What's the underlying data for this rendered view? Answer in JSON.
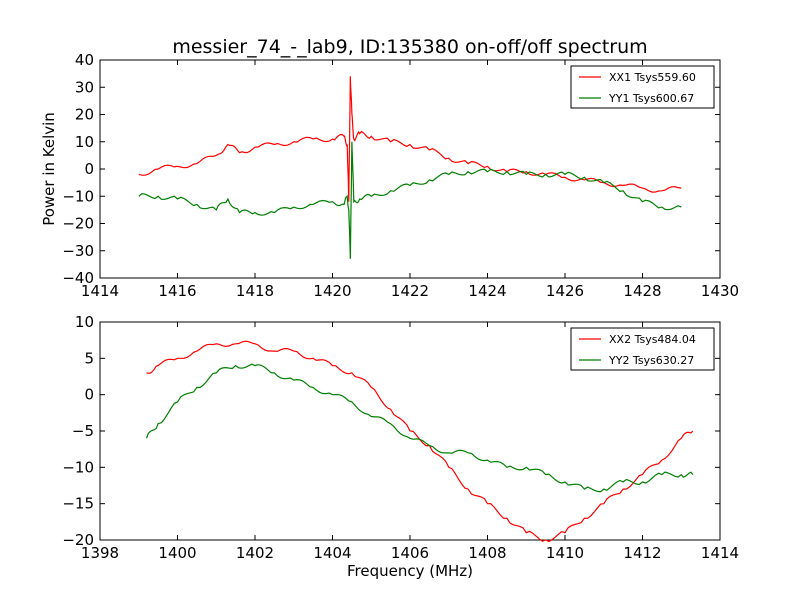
{
  "chart_data": [
    {
      "type": "line",
      "title": "messier_74_-_lab9, ID:135380 on-off/off spectrum",
      "xlabel": "",
      "ylabel": "Power in Kelvin",
      "xlim": [
        1414,
        1430
      ],
      "ylim": [
        -40,
        40
      ],
      "xticks": [
        "1414",
        "1416",
        "1418",
        "1420",
        "1422",
        "1424",
        "1426",
        "1428",
        "1430"
      ],
      "yticks": [
        "40",
        "30",
        "20",
        "10",
        "0",
        "−10",
        "−20",
        "−30",
        "−40"
      ],
      "legend_position": "top-right",
      "series": [
        {
          "name": "XX1 Tsys559.60",
          "color": "#ff0000",
          "x": [
            1415.0,
            1415.5,
            1416.0,
            1416.5,
            1417.0,
            1417.3,
            1417.6,
            1418.0,
            1418.5,
            1419.0,
            1419.5,
            1420.0,
            1420.3,
            1420.38,
            1420.42,
            1420.46,
            1420.5,
            1420.55,
            1420.7,
            1421.0,
            1421.5,
            1422.0,
            1422.5,
            1423.0,
            1423.5,
            1424.0,
            1424.5,
            1425.0,
            1425.5,
            1426.0,
            1426.5,
            1427.0,
            1427.5,
            1428.0,
            1428.5,
            1429.0
          ],
          "y": [
            -2,
            0,
            1,
            2,
            5,
            9,
            6,
            8,
            9,
            10,
            11,
            11,
            12,
            9,
            -12,
            34,
            20,
            11,
            13,
            12,
            10,
            9,
            7,
            4,
            2,
            1,
            -1,
            -1,
            -2,
            -3,
            -4,
            -5,
            -6,
            -7,
            -8,
            -7
          ]
        },
        {
          "name": "YY1 Tsys600.67",
          "color": "#007f00",
          "x": [
            1415.0,
            1415.5,
            1416.0,
            1416.5,
            1417.0,
            1417.3,
            1417.6,
            1418.0,
            1418.5,
            1419.0,
            1419.5,
            1420.0,
            1420.3,
            1420.38,
            1420.42,
            1420.46,
            1420.5,
            1420.55,
            1420.7,
            1421.0,
            1421.5,
            1422.0,
            1422.5,
            1423.0,
            1423.5,
            1424.0,
            1424.5,
            1425.0,
            1425.5,
            1426.0,
            1426.5,
            1427.0,
            1427.5,
            1428.0,
            1428.5,
            1429.0
          ],
          "y": [
            -10,
            -10,
            -11,
            -13,
            -15,
            -11,
            -16,
            -16,
            -16,
            -14,
            -13,
            -12,
            -13,
            -10,
            -15,
            -33,
            10,
            -12,
            -11,
            -10,
            -8,
            -6,
            -4,
            -2,
            -1,
            -1,
            -1,
            -2,
            -2,
            -2,
            -3,
            -5,
            -8,
            -12,
            -14,
            -14
          ]
        }
      ]
    },
    {
      "type": "line",
      "title": "",
      "xlabel": "Frequency (MHz)",
      "ylabel": "",
      "xlim": [
        1398,
        1414
      ],
      "ylim": [
        -20,
        10
      ],
      "xticks": [
        "1398",
        "1400",
        "1402",
        "1404",
        "1406",
        "1408",
        "1410",
        "1412",
        "1414"
      ],
      "yticks": [
        "10",
        "5",
        "0",
        "−5",
        "−10",
        "−15",
        "−20"
      ],
      "legend_position": "top-right",
      "series": [
        {
          "name": "XX2 Tsys484.04",
          "color": "#ff0000",
          "x": [
            1399.2,
            1399.5,
            1400.0,
            1400.5,
            1401.0,
            1401.5,
            1402.0,
            1402.5,
            1403.0,
            1403.5,
            1404.0,
            1404.5,
            1405.0,
            1405.5,
            1406.0,
            1406.5,
            1407.0,
            1407.5,
            1408.0,
            1408.5,
            1409.0,
            1409.5,
            1410.0,
            1410.5,
            1411.0,
            1411.5,
            1412.0,
            1412.5,
            1413.0,
            1413.3
          ],
          "y": [
            3,
            4,
            5,
            6,
            7,
            7,
            7,
            6,
            6,
            5,
            4,
            3,
            1,
            -2,
            -5,
            -7,
            -10,
            -13,
            -15,
            -17,
            -19,
            -20,
            -19,
            -17,
            -15,
            -13,
            -11,
            -9,
            -6,
            -5
          ]
        },
        {
          "name": "YY2 Tsys630.27",
          "color": "#007f00",
          "x": [
            1399.2,
            1399.5,
            1400.0,
            1400.5,
            1401.0,
            1401.5,
            1402.0,
            1402.5,
            1403.0,
            1403.5,
            1404.0,
            1404.5,
            1405.0,
            1405.5,
            1406.0,
            1406.5,
            1407.0,
            1407.5,
            1408.0,
            1408.5,
            1409.0,
            1409.5,
            1410.0,
            1410.5,
            1411.0,
            1411.5,
            1412.0,
            1412.5,
            1413.0,
            1413.3
          ],
          "y": [
            -6,
            -4,
            -1,
            1,
            3,
            4,
            4,
            3,
            2,
            1,
            0,
            -1,
            -3,
            -4,
            -6,
            -7,
            -8,
            -8,
            -9,
            -10,
            -10,
            -11,
            -12,
            -13,
            -13,
            -12,
            -12,
            -11,
            -11,
            -11
          ]
        }
      ]
    }
  ]
}
